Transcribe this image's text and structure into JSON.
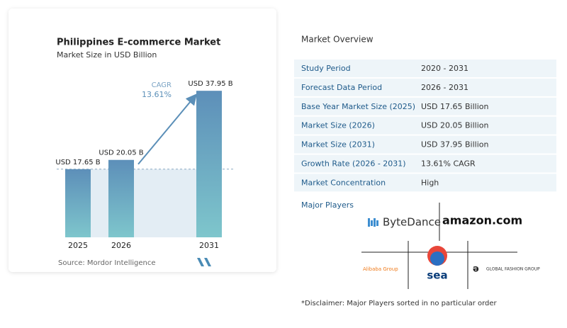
{
  "chart_data": {
    "type": "bar",
    "title": "Philippines E-commerce Market",
    "subtitle": "Market Size in USD Billion",
    "categories": [
      "2025",
      "2026",
      "2031"
    ],
    "values": [
      17.65,
      20.05,
      37.95
    ],
    "value_labels": [
      "USD 17.65 B",
      "USD 20.05 B",
      "USD 37.95 B"
    ],
    "annotation": {
      "label": "CAGR",
      "value": "13.61%"
    },
    "source": "Source: Mordor Intelligence"
  },
  "overview": {
    "title": "Market Overview",
    "rows": [
      [
        "Study Period",
        "2020 - 2031"
      ],
      [
        "Forecast Data Period",
        "2026 - 2031"
      ],
      [
        "Base Year Market Size (2025)",
        "USD 17.65 Billion"
      ],
      [
        "Market Size (2026)",
        "USD 20.05 Billion"
      ],
      [
        "Market Size (2031)",
        "USD 37.95 Billion"
      ],
      [
        "Growth Rate (2026 - 2031)",
        "13.61% CAGR"
      ],
      [
        "Market Concentration",
        "High"
      ]
    ],
    "players_title": "Major Players",
    "players": [
      "ByteDance",
      "amazon.com",
      "Alibaba Group",
      "sea",
      "GLOBAL FASHION GROUP"
    ],
    "disclaimer": "*Disclaimer: Major Players sorted in no particular order"
  }
}
